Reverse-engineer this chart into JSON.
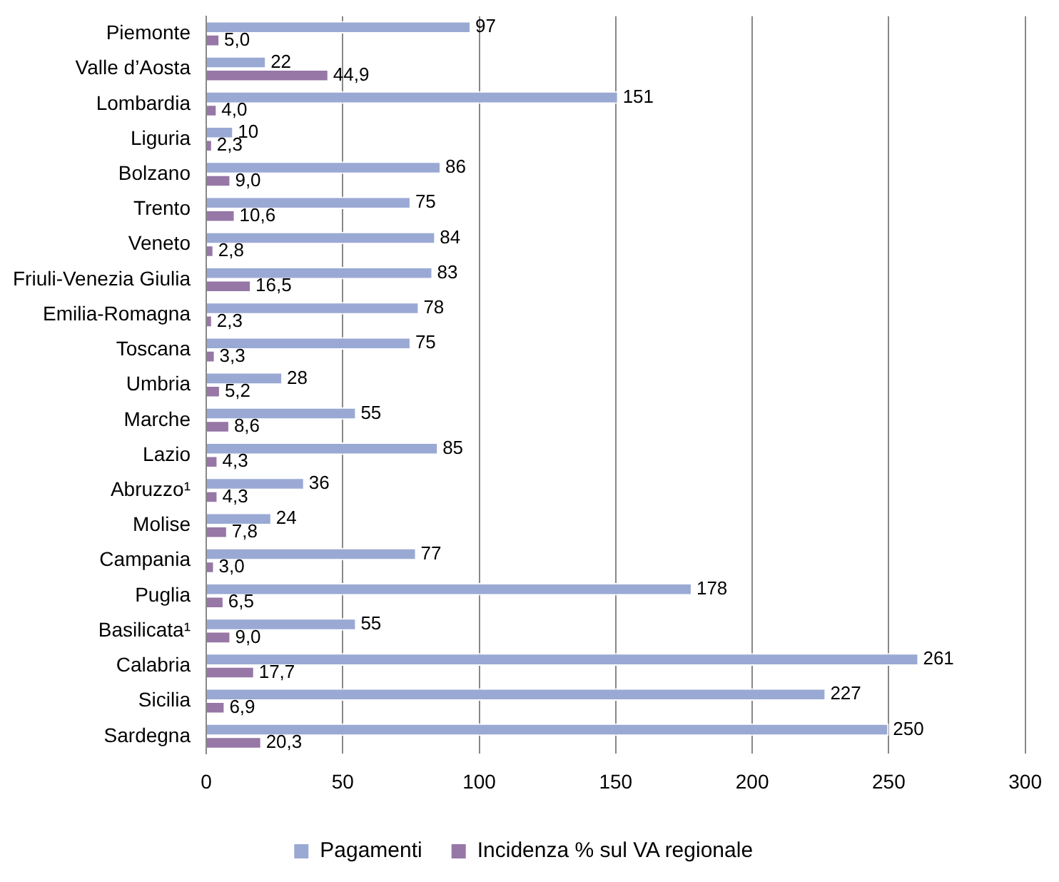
{
  "chart_data": {
    "type": "bar",
    "orientation": "horizontal",
    "categories": [
      "Piemonte",
      "Valle d’Aosta",
      "Lombardia",
      "Liguria",
      "Bolzano",
      "Trento",
      "Veneto",
      "Friuli-Venezia Giulia",
      "Emilia-Romagna",
      "Toscana",
      "Umbria",
      "Marche",
      "Lazio",
      "Abruzzo¹",
      "Molise",
      "Campania",
      "Puglia",
      "Basilicata¹",
      "Calabria",
      "Sicilia",
      "Sardegna"
    ],
    "series": [
      {
        "name": "Pagamenti",
        "color": "#9aa9d4",
        "values": [
          97,
          22,
          151,
          10,
          86,
          75,
          84,
          83,
          78,
          75,
          28,
          55,
          85,
          36,
          24,
          77,
          178,
          55,
          261,
          227,
          250
        ],
        "value_labels": [
          "97",
          "22",
          "151",
          "10",
          "86",
          "75",
          "84",
          "83",
          "78",
          "75",
          "28",
          "55",
          "85",
          "36",
          "24",
          "77",
          "178",
          "55",
          "261",
          "227",
          "250"
        ]
      },
      {
        "name": "Incidenza % sul VA regionale",
        "color": "#9677a6",
        "values": [
          5.0,
          44.9,
          4.0,
          2.3,
          9.0,
          10.6,
          2.8,
          16.5,
          2.3,
          3.3,
          5.2,
          8.6,
          4.3,
          4.3,
          7.8,
          3.0,
          6.5,
          9.0,
          17.7,
          6.9,
          20.3
        ],
        "value_labels": [
          "5,0",
          "44,9",
          "4,0",
          "2,3",
          "9,0",
          "10,6",
          "2,8",
          "16,5",
          "2,3",
          "3,3",
          "5,2",
          "8,6",
          "4,3",
          "4,3",
          "7,8",
          "3,0",
          "6,5",
          "9,0",
          "17,7",
          "6,9",
          "20,3"
        ]
      }
    ],
    "xlim": [
      0,
      300
    ],
    "xticks": [
      0,
      50,
      100,
      150,
      200,
      250,
      300
    ],
    "grid": "x",
    "legend": "bottom"
  }
}
